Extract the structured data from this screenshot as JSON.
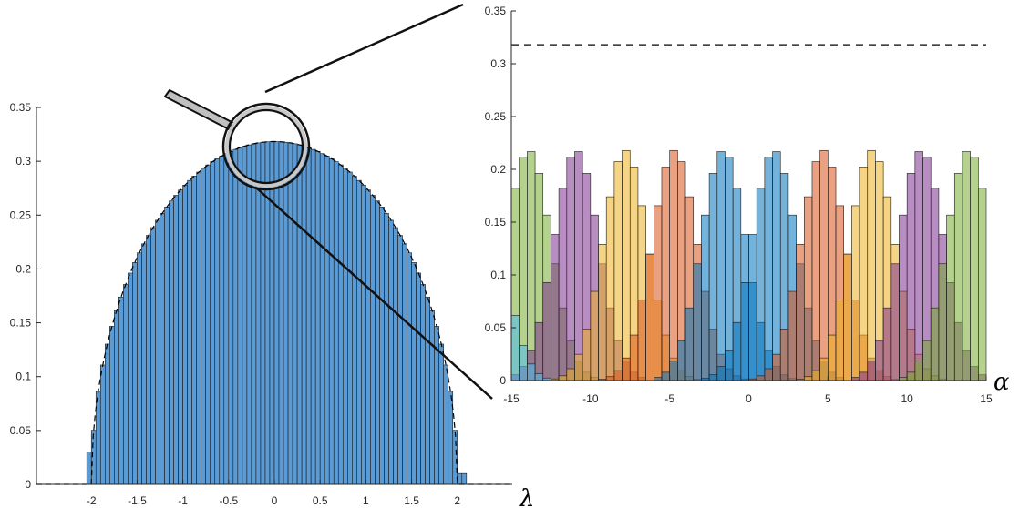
{
  "chart_data": [
    {
      "type": "bar",
      "panel": "left",
      "description_free": true,
      "xlabel": "λ",
      "ylabel": "",
      "xlim": [
        -2.6,
        2.6
      ],
      "ylim": [
        0,
        0.35
      ],
      "xticks": [
        -2,
        -1.5,
        -1,
        -0.5,
        0,
        0.5,
        1,
        1.5,
        2
      ],
      "xtick_labels": [
        "-2",
        "-1.5",
        "-1",
        "-0.5",
        "0",
        "0.5",
        "1",
        "1.5",
        "2"
      ],
      "yticks": [
        0,
        0.05,
        0.1,
        0.15,
        0.2,
        0.25,
        0.3,
        0.35
      ],
      "ytick_labels": [
        "0",
        "0.05",
        "0.1",
        "0.15",
        "0.2",
        "0.25",
        "0.3",
        "0.35"
      ],
      "bin_range": [
        -2.2,
        2.1
      ],
      "bin_width": 0.05,
      "bar_color": "#5b9bd5",
      "reference_curve": "semicircle",
      "reference_style": "dashed",
      "grid": false
    },
    {
      "type": "bar",
      "panel": "right",
      "xlabel": "α",
      "ylabel": "",
      "xlim": [
        -15,
        15
      ],
      "ylim": [
        0,
        0.35
      ],
      "xticks": [
        -15,
        -10,
        -5,
        0,
        5,
        10,
        15
      ],
      "xtick_labels": [
        "-15",
        "-10",
        "-5",
        "0",
        "5",
        "10",
        "15"
      ],
      "yticks": [
        0,
        0.05,
        0.1,
        0.15,
        0.2,
        0.25,
        0.3,
        0.35
      ],
      "ytick_labels": [
        "0",
        "0.05",
        "0.1",
        "0.15",
        "0.2",
        "0.25",
        "0.3",
        "0.35"
      ],
      "reference_line_y": 0.318,
      "reference_style": "dashed",
      "bin_width": 0.5,
      "series": [
        {
          "center": -13.9,
          "peak": 0.218,
          "width": 2.1,
          "color": "#77ac30"
        },
        {
          "center": -10.9,
          "peak": 0.218,
          "width": 2.1,
          "color": "#7e2f8e"
        },
        {
          "center": -7.8,
          "peak": 0.218,
          "width": 2.1,
          "color": "#edb120"
        },
        {
          "center": -4.7,
          "peak": 0.218,
          "width": 2.1,
          "color": "#d95319"
        },
        {
          "center": -1.6,
          "peak": 0.218,
          "width": 2.1,
          "color": "#0072bd"
        },
        {
          "center": 1.6,
          "peak": 0.218,
          "width": 2.1,
          "color": "#0072bd"
        },
        {
          "center": 4.7,
          "peak": 0.218,
          "width": 2.1,
          "color": "#d95319"
        },
        {
          "center": 7.8,
          "peak": 0.218,
          "width": 2.1,
          "color": "#edb120"
        },
        {
          "center": 10.9,
          "peak": 0.218,
          "width": 2.1,
          "color": "#7e2f8e"
        },
        {
          "center": 13.9,
          "peak": 0.218,
          "width": 2.1,
          "color": "#77ac30"
        },
        {
          "center": -17.0,
          "peak": 0.218,
          "width": 2.1,
          "color": "#4dbeee"
        }
      ],
      "grid": false
    }
  ],
  "magnifier": {
    "center_x": 0,
    "center_y": 0.3,
    "lens_color": "#222222",
    "handle_color": "#c0c0c0"
  }
}
